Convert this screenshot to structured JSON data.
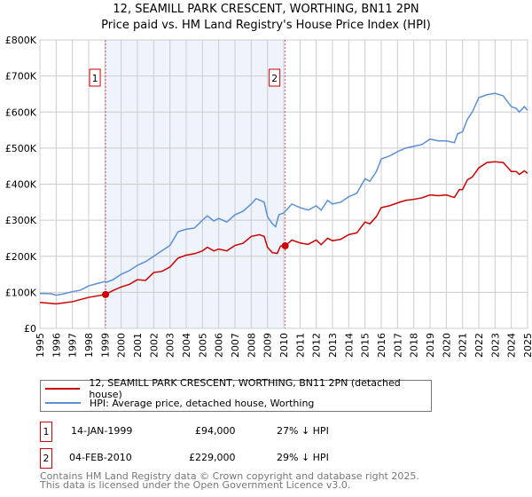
{
  "chart_data": {
    "type": "line",
    "title": "12, SEAMILL PARK CRESCENT, WORTHING, BN11 2PN",
    "subtitle": "Price paid vs. HM Land Registry's House Price Index (HPI)",
    "xlim": [
      1995,
      2025
    ],
    "ylim": [
      0,
      800000
    ],
    "x_ticks": [
      "1995",
      "1996",
      "1997",
      "1998",
      "1999",
      "2000",
      "2001",
      "2002",
      "2003",
      "2004",
      "2005",
      "2006",
      "2007",
      "2008",
      "2009",
      "2010",
      "2011",
      "2012",
      "2013",
      "2014",
      "2015",
      "2016",
      "2017",
      "2018",
      "2019",
      "2020",
      "2021",
      "2022",
      "2023",
      "2024",
      "2025"
    ],
    "y_ticks": [
      {
        "v": 0,
        "label": "£0"
      },
      {
        "v": 100000,
        "label": "£100K"
      },
      {
        "v": 200000,
        "label": "£200K"
      },
      {
        "v": 300000,
        "label": "£300K"
      },
      {
        "v": 400000,
        "label": "£400K"
      },
      {
        "v": 500000,
        "label": "£500K"
      },
      {
        "v": 600000,
        "label": "£600K"
      },
      {
        "v": 700000,
        "label": "£700K"
      },
      {
        "v": 800000,
        "label": "£800K"
      }
    ],
    "grid": true,
    "shaded_range": [
      1999.04,
      2010.09
    ],
    "series": [
      {
        "name": "12, SEAMILL PARK CRESCENT, WORTHING, BN11 2PN (detached house)",
        "color": "#cc0000",
        "x": [
          1995,
          1996,
          1997,
          1998,
          1999.04,
          1999.5,
          2000,
          2000.5,
          2001,
          2001.5,
          2002,
          2002.5,
          2003,
          2003.5,
          2004,
          2004.5,
          2005,
          2005.3,
          2005.7,
          2006,
          2006.5,
          2007,
          2007.5,
          2008,
          2008.5,
          2008.8,
          2009,
          2009.3,
          2009.6,
          2009.8,
          2010.09,
          2010.5,
          2011,
          2011.5,
          2012,
          2012.3,
          2012.7,
          2013,
          2013.5,
          2014,
          2014.5,
          2015,
          2015.3,
          2015.7,
          2016,
          2016.5,
          2017,
          2017.5,
          2018,
          2018.5,
          2019,
          2019.5,
          2020,
          2020.5,
          2020.8,
          2021,
          2021.3,
          2021.6,
          2022,
          2022.5,
          2023,
          2023.5,
          2024,
          2024.3,
          2024.5,
          2024.8,
          2025
        ],
        "y": [
          72000,
          68000,
          74000,
          86000,
          94000,
          105000,
          115000,
          122000,
          135000,
          133000,
          155000,
          158000,
          170000,
          195000,
          203000,
          207000,
          215000,
          225000,
          215000,
          220000,
          215000,
          230000,
          236000,
          255000,
          260000,
          255000,
          225000,
          210000,
          208000,
          228000,
          229000,
          245000,
          237000,
          233000,
          245000,
          232000,
          250000,
          243000,
          247000,
          260000,
          265000,
          295000,
          290000,
          310000,
          335000,
          340000,
          348000,
          355000,
          358000,
          362000,
          370000,
          368000,
          370000,
          363000,
          385000,
          385000,
          412000,
          420000,
          445000,
          460000,
          462000,
          460000,
          435000,
          435000,
          427000,
          437000,
          430000
        ]
      },
      {
        "name": "HPI: Average price, detached house, Worthing",
        "color": "#5b8fd6",
        "x": [
          1995,
          1995.7,
          1996,
          1996.5,
          1997,
          1997.5,
          1998,
          1998.5,
          1999,
          1999.1,
          1999.5,
          2000,
          2000.5,
          2001,
          2001.5,
          2002,
          2002.5,
          2003,
          2003.5,
          2004,
          2004.5,
          2005,
          2005.3,
          2005.7,
          2006,
          2006.5,
          2007,
          2007.5,
          2008,
          2008.3,
          2008.8,
          2009,
          2009.3,
          2009.5,
          2009.7,
          2010,
          2010.5,
          2011,
          2011.5,
          2012,
          2012.3,
          2012.7,
          2013,
          2013.5,
          2014,
          2014.5,
          2015,
          2015.3,
          2015.7,
          2016,
          2016.5,
          2017,
          2017.5,
          2018,
          2018.5,
          2019,
          2019.5,
          2020,
          2020.5,
          2020.7,
          2021,
          2021.3,
          2021.6,
          2022,
          2022.5,
          2023,
          2023.5,
          2024,
          2024.3,
          2024.5,
          2024.8,
          2025
        ],
        "y": [
          97000,
          96000,
          92000,
          96000,
          102000,
          106000,
          118000,
          124000,
          130000,
          128000,
          135000,
          150000,
          160000,
          175000,
          185000,
          200000,
          215000,
          230000,
          268000,
          275000,
          278000,
          300000,
          312000,
          298000,
          305000,
          295000,
          315000,
          325000,
          345000,
          360000,
          350000,
          310000,
          290000,
          282000,
          315000,
          320000,
          345000,
          335000,
          328000,
          340000,
          328000,
          355000,
          345000,
          350000,
          365000,
          375000,
          415000,
          408000,
          435000,
          470000,
          478000,
          490000,
          500000,
          505000,
          510000,
          525000,
          520000,
          520000,
          515000,
          540000,
          545000,
          580000,
          600000,
          640000,
          648000,
          652000,
          645000,
          615000,
          610000,
          600000,
          615000,
          605000
        ]
      }
    ],
    "sales": [
      {
        "n": "1",
        "x": 1999.04,
        "y": 94000,
        "date": "14-JAN-1999",
        "price": "£94,000",
        "hpi": "27% ↓ HPI"
      },
      {
        "n": "2",
        "x": 2010.09,
        "y": 229000,
        "date": "04-FEB-2010",
        "price": "£229,000",
        "hpi": "29% ↓ HPI"
      }
    ]
  },
  "footer": {
    "line1": "Contains HM Land Registry data © Crown copyright and database right 2025.",
    "line2": "This data is licensed under the Open Government Licence v3.0."
  }
}
